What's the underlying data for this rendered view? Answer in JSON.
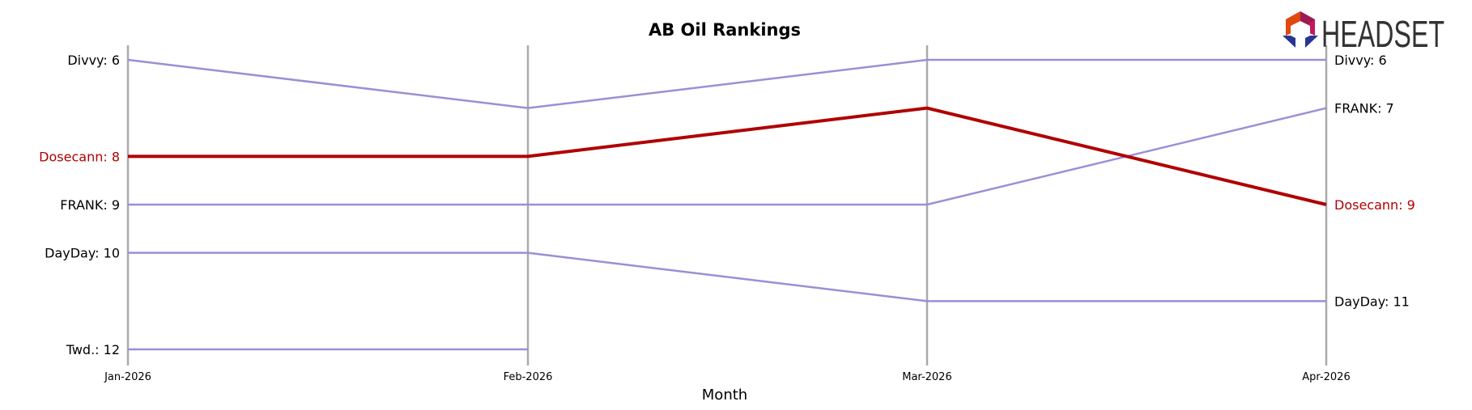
{
  "chart_data": {
    "type": "line",
    "title": "AB Oil Rankings",
    "xlabel": "Month",
    "ylabel": "",
    "categories": [
      "Jan-2026",
      "Feb-2026",
      "Mar-2026",
      "Apr-2026"
    ],
    "ylim": [
      12,
      6
    ],
    "grid": false,
    "series": [
      {
        "name": "Divvy",
        "values": [
          6,
          7,
          6,
          6
        ],
        "highlight": false
      },
      {
        "name": "Dosecann",
        "values": [
          8,
          8,
          7,
          9
        ],
        "highlight": true
      },
      {
        "name": "FRANK",
        "values": [
          9,
          9,
          9,
          7
        ],
        "highlight": false
      },
      {
        "name": "DayDay",
        "values": [
          10,
          10,
          11,
          11
        ],
        "highlight": false
      },
      {
        "name": "Twd.",
        "values": [
          12,
          12,
          null,
          null
        ],
        "highlight": false
      }
    ],
    "left_labels": [
      {
        "text": "Divvy: 6",
        "rank": 6,
        "highlight": false
      },
      {
        "text": "Dosecann: 8",
        "rank": 8,
        "highlight": true
      },
      {
        "text": "FRANK: 9",
        "rank": 9,
        "highlight": false
      },
      {
        "text": "DayDay: 10",
        "rank": 10,
        "highlight": false
      },
      {
        "text": "Twd.: 12",
        "rank": 12,
        "highlight": false
      }
    ],
    "right_labels": [
      {
        "text": "Divvy: 6",
        "rank": 6,
        "highlight": false
      },
      {
        "text": "FRANK: 7",
        "rank": 7,
        "highlight": false
      },
      {
        "text": "Dosecann: 9",
        "rank": 9,
        "highlight": true
      },
      {
        "text": "DayDay: 11",
        "rank": 11,
        "highlight": false
      }
    ],
    "colors": {
      "highlight": "#b00000",
      "other": "#9a8fd6",
      "axis": "#aaaaaa",
      "text": "#000000"
    }
  },
  "logo": {
    "text": "HEADSET"
  }
}
